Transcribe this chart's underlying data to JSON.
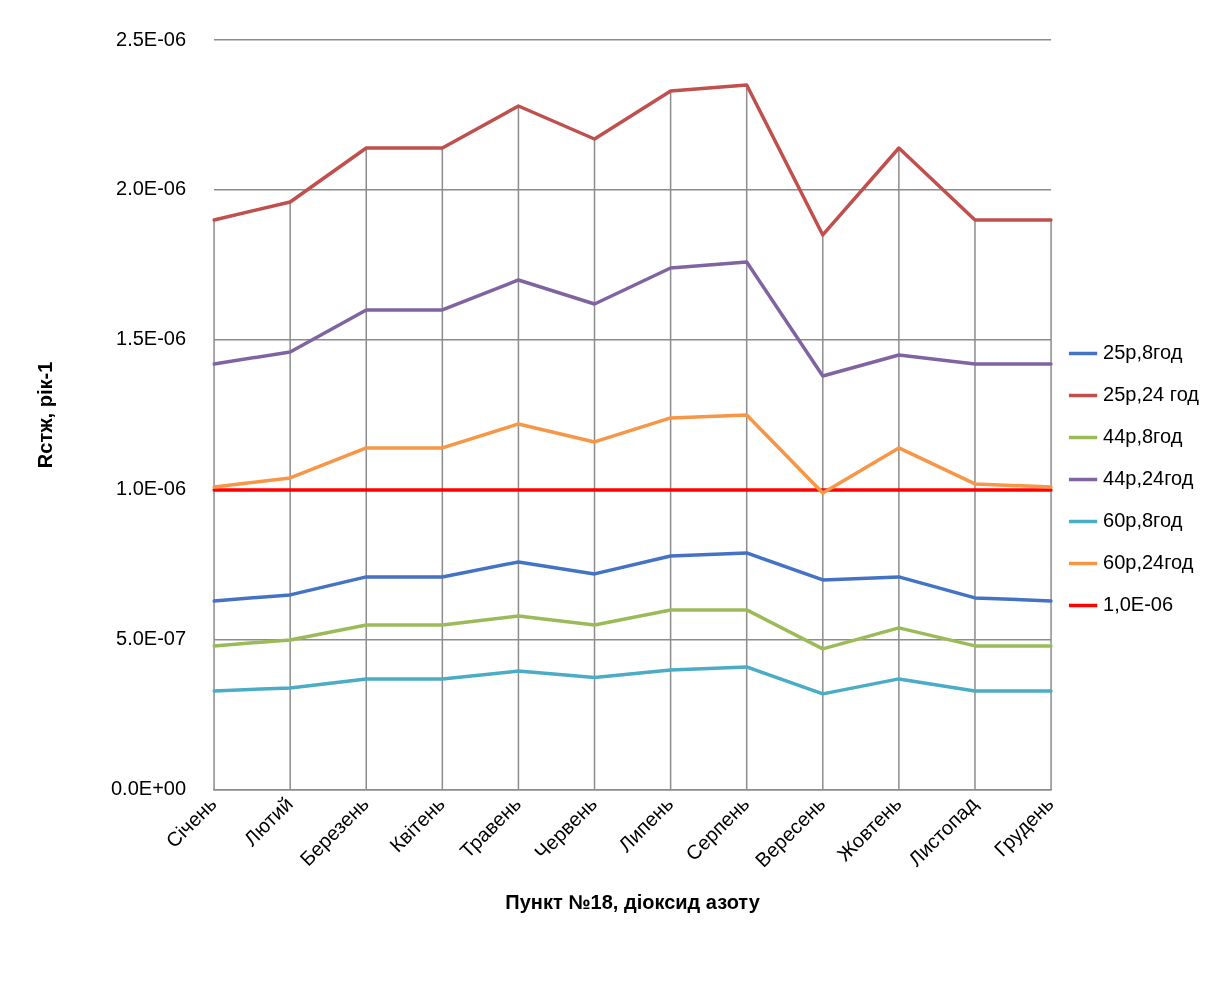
{
  "chart_data": {
    "type": "line",
    "xlabel": "Пункт №18, діоксид азоту",
    "ylabel": "Rстж, рік-1",
    "categories": [
      "Січень",
      "Лютий",
      "Березень",
      "Квітень",
      "Травень",
      "Червень",
      "Липень",
      "Серпень",
      "Вересень",
      "Жовтень",
      "Листопад",
      "Грудень"
    ],
    "series": [
      {
        "name": "25р,8год",
        "color": "#4472c4",
        "values": [
          6.3e-07,
          6.5e-07,
          7.1e-07,
          7.1e-07,
          7.6e-07,
          7.2e-07,
          7.8e-07,
          7.9e-07,
          7e-07,
          7.1e-07,
          6.4e-07,
          6.3e-07
        ]
      },
      {
        "name": "25р,24 год",
        "color": "#c0504d",
        "values": [
          1.9e-06,
          1.96e-06,
          2.14e-06,
          2.14e-06,
          2.28e-06,
          2.17e-06,
          2.33e-06,
          2.35e-06,
          1.85e-06,
          2.14e-06,
          1.9e-06,
          1.9e-06
        ]
      },
      {
        "name": "44р,8год",
        "color": "#9bbb59",
        "values": [
          4.8e-07,
          5e-07,
          5.5e-07,
          5.5e-07,
          5.8e-07,
          5.5e-07,
          6e-07,
          6e-07,
          4.7e-07,
          5.4e-07,
          4.8e-07,
          4.8e-07
        ]
      },
      {
        "name": "44р,24год",
        "color": "#8064a2",
        "values": [
          1.42e-06,
          1.46e-06,
          1.6e-06,
          1.6e-06,
          1.7e-06,
          1.62e-06,
          1.74e-06,
          1.76e-06,
          1.38e-06,
          1.45e-06,
          1.42e-06,
          1.42e-06
        ]
      },
      {
        "name": "60р,8год",
        "color": "#4bacc6",
        "values": [
          3.3e-07,
          3.4e-07,
          3.7e-07,
          3.7e-07,
          3.96e-07,
          3.75e-07,
          4e-07,
          4.1e-07,
          3.2e-07,
          3.7e-07,
          3.3e-07,
          3.3e-07
        ]
      },
      {
        "name": "60р,24год",
        "color": "#f79646",
        "values": [
          1.01e-06,
          1.04e-06,
          1.14e-06,
          1.14e-06,
          1.22e-06,
          1.16e-06,
          1.24e-06,
          1.25e-06,
          9.9e-07,
          1.14e-06,
          1.02e-06,
          1.01e-06
        ]
      },
      {
        "name": "1,0E-06",
        "color": "#ff0000",
        "values": [
          1e-06,
          1e-06,
          1e-06,
          1e-06,
          1e-06,
          1e-06,
          1e-06,
          1e-06,
          1e-06,
          1e-06,
          1e-06,
          1e-06
        ]
      }
    ],
    "ylim": [
      0,
      2.5e-06
    ],
    "yticks": [
      {
        "value": 0,
        "label": "0.0E+00"
      },
      {
        "value": 5e-07,
        "label": "5.0E-07"
      },
      {
        "value": 1e-06,
        "label": "1.0E-06"
      },
      {
        "value": 1.5e-06,
        "label": "1.5E-06"
      },
      {
        "value": 2e-06,
        "label": "2.0E-06"
      },
      {
        "value": 2.5e-06,
        "label": "2.5E-06"
      }
    ],
    "grid": true,
    "legend": "right",
    "marker": "none",
    "line_style": "solid"
  }
}
